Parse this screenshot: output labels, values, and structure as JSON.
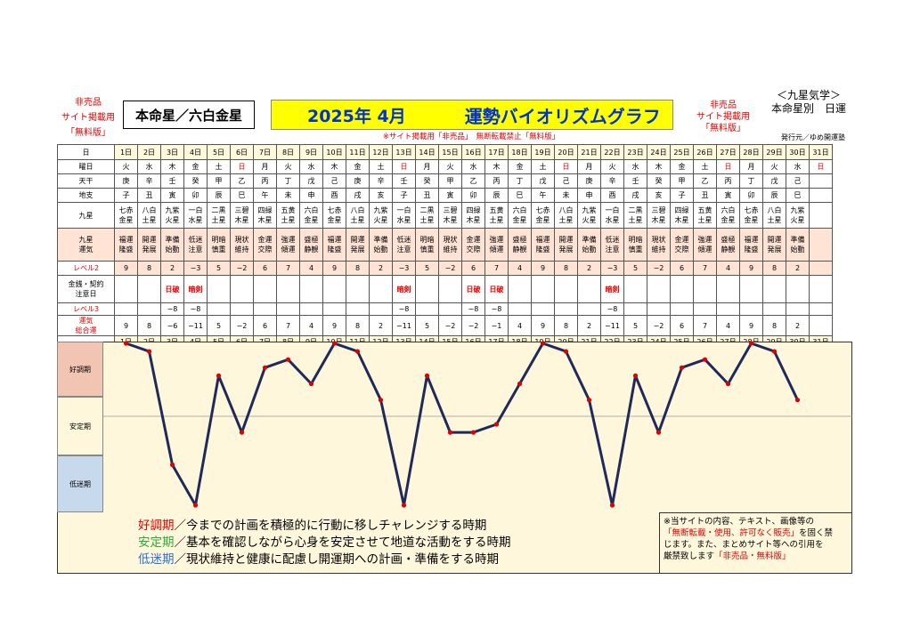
{
  "header": {
    "left_note_lines": [
      "非売品",
      "サイト掲載用",
      "「無料版」"
    ],
    "honmei": "本命星／六白金星",
    "title_year": "2025年 4月",
    "title_main": "運勢バイオリズムグラフ",
    "right_note_lines": [
      "非売品",
      "サイト掲載用",
      "「無料版」"
    ],
    "brand_lines": [
      "＜九星気学＞",
      "本命星別　日運"
    ],
    "notice": "※サイト掲載用「非売品」　無断転載禁止「無料版」",
    "publisher": "発行元／ゆめ開運塾"
  },
  "row_labels": {
    "day": "日",
    "dow": "曜日",
    "tenkan": "天干",
    "chishi": "地支",
    "kyusei": "九星",
    "unki": [
      "九星",
      "運気"
    ],
    "level2": "レベル2",
    "kinsen": [
      "金銭・契約",
      "注意日"
    ],
    "level3": "レベル3",
    "sogo": [
      "運気",
      "総合運"
    ]
  },
  "days": [
    "1日",
    "2日",
    "3日",
    "4日",
    "5日",
    "6日",
    "7日",
    "8日",
    "9日",
    "10日",
    "11日",
    "12日",
    "13日",
    "14日",
    "15日",
    "16日",
    "17日",
    "18日",
    "19日",
    "20日",
    "21日",
    "22日",
    "23日",
    "24日",
    "25日",
    "26日",
    "27日",
    "28日",
    "29日",
    "30日",
    "31日"
  ],
  "dow": [
    "火",
    "水",
    "木",
    "金",
    "土",
    "日",
    "月",
    "火",
    "水",
    "木",
    "金",
    "土",
    "日",
    "月",
    "火",
    "水",
    "木",
    "金",
    "土",
    "日",
    "月",
    "火",
    "水",
    "木",
    "金",
    "土",
    "日",
    "月",
    "火",
    "水",
    "日"
  ],
  "tenkan": [
    "庚",
    "辛",
    "壬",
    "癸",
    "甲",
    "乙",
    "丙",
    "丁",
    "戊",
    "己",
    "庚",
    "辛",
    "壬",
    "癸",
    "甲",
    "乙",
    "丙",
    "丁",
    "戊",
    "己",
    "庚",
    "辛",
    "壬",
    "癸",
    "甲",
    "乙",
    "丙",
    "丁",
    "戊",
    "己",
    ""
  ],
  "chishi": [
    "子",
    "丑",
    "寅",
    "卯",
    "辰",
    "巳",
    "午",
    "未",
    "申",
    "酉",
    "戌",
    "亥",
    "子",
    "丑",
    "寅",
    "卯",
    "辰",
    "巳",
    "午",
    "未",
    "申",
    "酉",
    "戌",
    "亥",
    "子",
    "丑",
    "寅",
    "卯",
    "辰",
    "巳",
    ""
  ],
  "kyusei": [
    [
      "七赤",
      "金星"
    ],
    [
      "八白",
      "土星"
    ],
    [
      "九紫",
      "火星"
    ],
    [
      "一白",
      "水星"
    ],
    [
      "二黒",
      "土星"
    ],
    [
      "三碧",
      "木星"
    ],
    [
      "四緑",
      "木星"
    ],
    [
      "五黄",
      "土星"
    ],
    [
      "六白",
      "金星"
    ],
    [
      "七赤",
      "金星"
    ],
    [
      "八白",
      "土星"
    ],
    [
      "九紫",
      "火星"
    ],
    [
      "一白",
      "水星"
    ],
    [
      "二黒",
      "土星"
    ],
    [
      "三碧",
      "木星"
    ],
    [
      "四緑",
      "木星"
    ],
    [
      "五黄",
      "土星"
    ],
    [
      "六白",
      "金星"
    ],
    [
      "七赤",
      "金星"
    ],
    [
      "八白",
      "土星"
    ],
    [
      "九紫",
      "火星"
    ],
    [
      "一白",
      "水星"
    ],
    [
      "二黒",
      "土星"
    ],
    [
      "三碧",
      "木星"
    ],
    [
      "四緑",
      "木星"
    ],
    [
      "五黄",
      "土星"
    ],
    [
      "六白",
      "金星"
    ],
    [
      "七赤",
      "金星"
    ],
    [
      "八白",
      "土星"
    ],
    [
      "九紫",
      "火星"
    ],
    [
      "",
      ""
    ]
  ],
  "unki": [
    [
      "福運",
      "隆盛"
    ],
    [
      "開運",
      "発展"
    ],
    [
      "準備",
      "始動"
    ],
    [
      "低迷",
      "注意"
    ],
    [
      "明暗",
      "慎重"
    ],
    [
      "現状",
      "維持"
    ],
    [
      "金運",
      "交際"
    ],
    [
      "強運",
      "傾運"
    ],
    [
      "盛極",
      "静観"
    ],
    [
      "福運",
      "隆盛"
    ],
    [
      "開運",
      "発展"
    ],
    [
      "準備",
      "始動"
    ],
    [
      "低迷",
      "注意"
    ],
    [
      "明暗",
      "慎重"
    ],
    [
      "現状",
      "維持"
    ],
    [
      "金運",
      "交際"
    ],
    [
      "強運",
      "傾運"
    ],
    [
      "盛極",
      "静観"
    ],
    [
      "福運",
      "隆盛"
    ],
    [
      "開運",
      "発展"
    ],
    [
      "準備",
      "始動"
    ],
    [
      "低迷",
      "注意"
    ],
    [
      "明暗",
      "慎重"
    ],
    [
      "現状",
      "維持"
    ],
    [
      "金運",
      "交際"
    ],
    [
      "強運",
      "傾運"
    ],
    [
      "盛極",
      "静観"
    ],
    [
      "福運",
      "隆盛"
    ],
    [
      "開運",
      "発展"
    ],
    [
      "準備",
      "始動"
    ],
    [
      "",
      ""
    ]
  ],
  "level2": [
    "9",
    "8",
    "2",
    "−3",
    "5",
    "−2",
    "6",
    "7",
    "4",
    "9",
    "8",
    "2",
    "−3",
    "5",
    "−2",
    "6",
    "7",
    "4",
    "9",
    "8",
    "2",
    "−3",
    "5",
    "−2",
    "6",
    "7",
    "4",
    "9",
    "8",
    "2",
    ""
  ],
  "kinsen": [
    "",
    "",
    "日破",
    "暗剣",
    "",
    "",
    "",
    "",
    "",
    "",
    "",
    "",
    "暗剣",
    "",
    "",
    "日破",
    "日破",
    "",
    "",
    "",
    "",
    "暗剣",
    "",
    "",
    "",
    "",
    "",
    "",
    "",
    "",
    ""
  ],
  "level3": [
    "",
    "",
    "−8",
    "−8",
    "",
    "",
    "",
    "",
    "",
    "",
    "",
    "",
    "−8",
    "",
    "",
    "−8",
    "−8",
    "",
    "",
    "",
    "",
    "−8",
    "",
    "",
    "",
    "",
    "",
    "",
    "",
    "",
    ""
  ],
  "sogo": [
    "9",
    "8",
    "−6",
    "−11",
    "5",
    "−2",
    "6",
    "7",
    "4",
    "9",
    "8",
    "2",
    "−11",
    "5",
    "−2",
    "−2",
    "−1",
    "4",
    "9",
    "8",
    "2",
    "−11",
    "5",
    "−2",
    "6",
    "7",
    "4",
    "9",
    "8",
    "2",
    ""
  ],
  "chart_data": {
    "type": "line",
    "categories": [
      "1日",
      "2日",
      "3日",
      "4日",
      "5日",
      "6日",
      "7日",
      "8日",
      "9日",
      "10日",
      "11日",
      "12日",
      "13日",
      "14日",
      "15日",
      "16日",
      "17日",
      "18日",
      "19日",
      "20日",
      "21日",
      "22日",
      "23日",
      "24日",
      "25日",
      "26日",
      "27日",
      "28日",
      "29日",
      "30日"
    ],
    "values": [
      9,
      8,
      -6,
      -11,
      5,
      -2,
      6,
      7,
      4,
      9,
      8,
      2,
      -11,
      5,
      -2,
      -2,
      -1,
      4,
      9,
      8,
      2,
      -11,
      5,
      -2,
      6,
      7,
      4,
      9,
      8,
      2
    ],
    "ylim": [
      -11,
      9
    ],
    "zones": [
      "好調期",
      "安定期",
      "低迷期"
    ],
    "line_color": "#1f2a5a",
    "marker_color": "#e00000",
    "grid": false
  },
  "legend": [
    {
      "term": "好調期",
      "text": "／今までの計画を積極的に行動に移しチャレンジする時期"
    },
    {
      "term": "安定期",
      "text": "／基本を確認しながら心身を安定させて地道な活動をする時期"
    },
    {
      "term": "低迷期",
      "text": "／現状維持と健康に配慮し開運期への計画・準備をする時期"
    }
  ],
  "note": {
    "line1": "※当サイトの内容、テキスト、画像等の",
    "line2_red": "「無断転載・使用、許可なく販売」",
    "line2_tail": "を固く禁",
    "line3": "じます。また、まとめサイト等への引用を",
    "line4_head": "厳禁致します",
    "line4_red": "「非売品・無料版」"
  }
}
